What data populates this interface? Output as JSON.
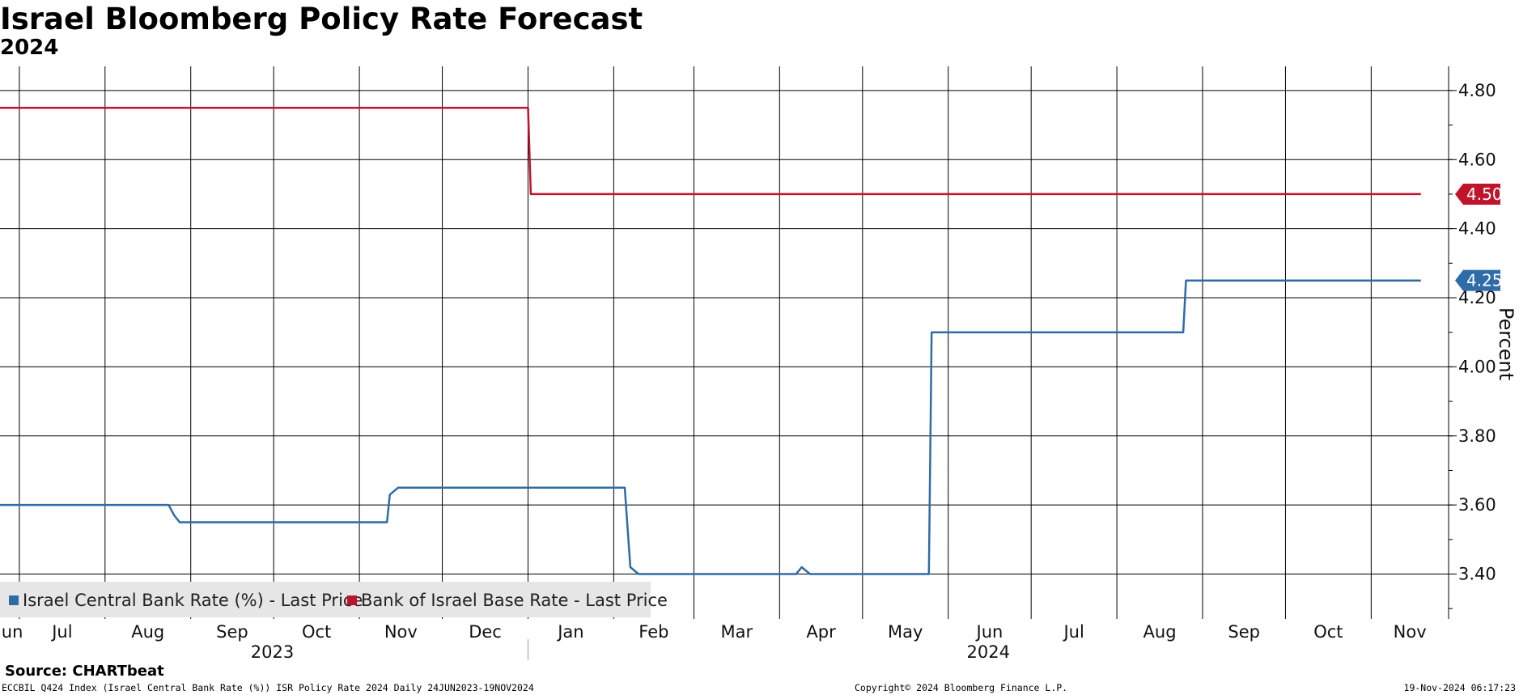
{
  "chart_data": {
    "type": "line",
    "title": "Israel Bloomberg Policy Rate Forecast",
    "subtitle": "2024",
    "ylabel": "Percent",
    "ylim": [
      3.27,
      4.87
    ],
    "yticks": [
      "3.40",
      "3.60",
      "3.80",
      "4.00",
      "4.20",
      "4.40",
      "4.60",
      "4.80"
    ],
    "xlim": [
      "2023-06-24",
      "2024-11-29"
    ],
    "month_labels": [
      "Jun",
      "Jul",
      "Aug",
      "Sep",
      "Oct",
      "Nov",
      "Dec",
      "Jan",
      "Feb",
      "Mar",
      "Apr",
      "May",
      "Jun",
      "Jul",
      "Aug",
      "Sep",
      "Oct",
      "Nov"
    ],
    "year_labels": [
      "2023",
      "2024"
    ],
    "grid": true,
    "legend_position": "bottom-left",
    "series": [
      {
        "name": "Israel Central Bank Rate (%) - Last Price",
        "color": "#2e6ca8",
        "last_value_tag": "4.25",
        "points": [
          [
            "2023-06-24",
            3.6
          ],
          [
            "2023-08-24",
            3.6
          ],
          [
            "2023-08-26",
            3.57
          ],
          [
            "2023-08-28",
            3.55
          ],
          [
            "2023-11-11",
            3.55
          ],
          [
            "2023-11-12",
            3.63
          ],
          [
            "2023-11-15",
            3.65
          ],
          [
            "2024-02-05",
            3.65
          ],
          [
            "2024-02-07",
            3.42
          ],
          [
            "2024-02-10",
            3.4
          ],
          [
            "2024-04-07",
            3.4
          ],
          [
            "2024-04-09",
            3.42
          ],
          [
            "2024-04-12",
            3.4
          ],
          [
            "2024-05-25",
            3.4
          ],
          [
            "2024-05-26",
            4.1
          ],
          [
            "2024-08-25",
            4.1
          ],
          [
            "2024-08-26",
            4.25
          ],
          [
            "2024-11-19",
            4.25
          ]
        ]
      },
      {
        "name": "Bank of Israel Base Rate - Last Price",
        "color": "#c0142c",
        "last_value_tag": "4.50",
        "points": [
          [
            "2023-06-24",
            4.75
          ],
          [
            "2024-01-01",
            4.75
          ],
          [
            "2024-01-02",
            4.5
          ],
          [
            "2024-11-19",
            4.5
          ]
        ]
      }
    ]
  },
  "source": "Source: CHARTbeat",
  "footer": {
    "left": "ECCBIL Q424 Index (Israel Central Bank Rate (%)) ISR Policy Rate 2024  Daily 24JUN2023-19NOV2024",
    "middle": "Copyright© 2024 Bloomberg Finance L.P.",
    "right": "19-Nov-2024 06:17:23"
  }
}
